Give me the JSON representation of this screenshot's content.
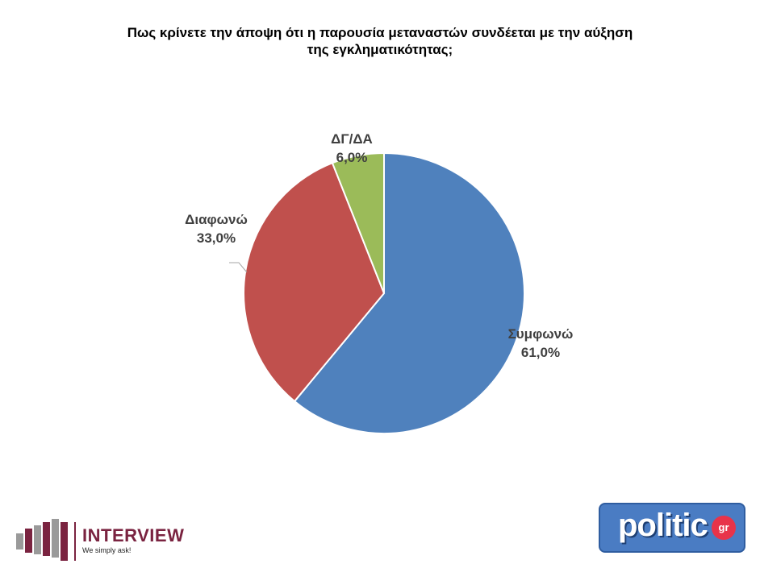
{
  "chart_data": {
    "type": "pie",
    "title_lines": [
      "Πως κρίνετε την άποψη ότι η παρουσία μεταναστών συνδέεται με την αύξηση",
      "της εγκληματικότητας;"
    ],
    "slices": [
      {
        "name": "Συμφωνώ",
        "value": 61.0,
        "label": "61,0%",
        "color": "#4f81bd"
      },
      {
        "name": "Διαφωνώ",
        "value": 33.0,
        "label": "33,0%",
        "color": "#c0504d"
      },
      {
        "name": "ΔΓ/ΔΑ",
        "value": 6.0,
        "label": "6,0%",
        "color": "#9bbb59"
      }
    ],
    "start_angle_deg": 0,
    "direction": "clockwise",
    "legend": "none"
  },
  "logos": {
    "interview": {
      "brand": "INTERVIEW",
      "tagline": "We simply ask!",
      "color": "#7a2340"
    },
    "politic": {
      "word": "politic",
      "badge": "gr",
      "color": "#4a7cc3"
    }
  }
}
